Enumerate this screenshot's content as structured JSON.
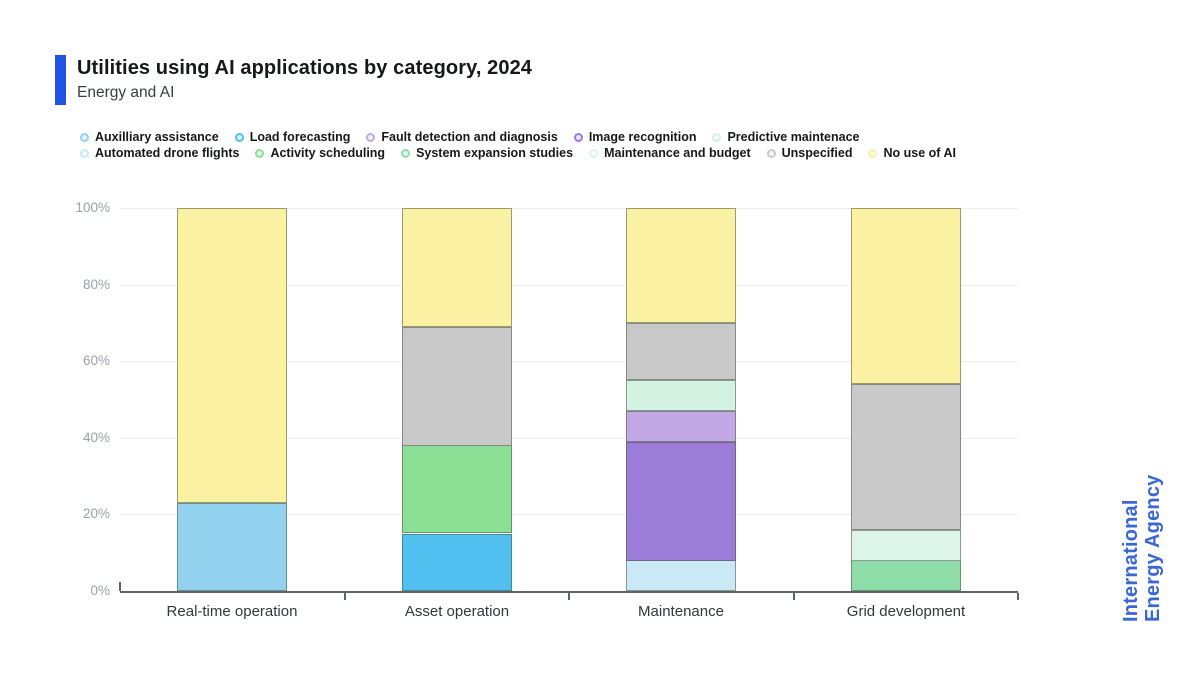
{
  "chart_data": {
    "type": "bar",
    "stacked": true,
    "title": "Utilities using AI applications by category, 2024",
    "subtitle": "Energy and AI",
    "unit": "%",
    "categories": [
      "Real-time operation",
      "Asset operation",
      "Maintenance",
      "Grid development"
    ],
    "series": [
      {
        "name": "Auxilliary assistance",
        "color": "#93D2EE",
        "values": [
          23,
          0,
          0,
          0
        ]
      },
      {
        "name": "Load forecasting",
        "color": "#4FC0EF",
        "values": [
          0,
          15,
          0,
          0
        ]
      },
      {
        "name": "Automated drone flights",
        "color": "#CAE9F6",
        "values": [
          0,
          0,
          8,
          0
        ]
      },
      {
        "name": "Image recognition",
        "color": "#9B7CD6",
        "values": [
          0,
          0,
          31,
          0
        ]
      },
      {
        "name": "Fault detection and diagnosis",
        "color": "#C2A9E6",
        "values": [
          0,
          0,
          8,
          0
        ]
      },
      {
        "name": "Predictive maintenace",
        "color": "#D4F2E1",
        "values": [
          0,
          0,
          8,
          0
        ]
      },
      {
        "name": "Activity scheduling",
        "color": "#8CE096",
        "values": [
          0,
          23,
          0,
          0
        ]
      },
      {
        "name": "System expansion studies",
        "color": "#8EDCA8",
        "values": [
          0,
          0,
          0,
          8
        ]
      },
      {
        "name": "Maintenance and budget",
        "color": "#DDF4E8",
        "values": [
          0,
          0,
          0,
          8
        ]
      },
      {
        "name": "Unspecified",
        "color": "#C9C9C9",
        "values": [
          0,
          31,
          15,
          38
        ]
      },
      {
        "name": "No use of AI",
        "color": "#FAF2A2",
        "values": [
          77,
          31,
          30,
          46
        ]
      }
    ],
    "legend_rows": [
      [
        "Auxilliary assistance",
        "Load forecasting",
        "Fault detection and diagnosis",
        "Image recognition",
        "Predictive maintenace"
      ],
      [
        "Automated drone flights",
        "Activity scheduling",
        "System expansion studies",
        "Maintenance and budget",
        "Unspecified",
        "No use of AI"
      ]
    ],
    "yticks": [
      "0%",
      "20%",
      "40%",
      "60%",
      "80%",
      "100%"
    ],
    "ylim": [
      0,
      100
    ],
    "grid": true,
    "legend_position": "top"
  },
  "branding": {
    "line1": "International",
    "line2": "Energy Agency",
    "color": "#3A67D6"
  },
  "accent_color": "#2152E3"
}
